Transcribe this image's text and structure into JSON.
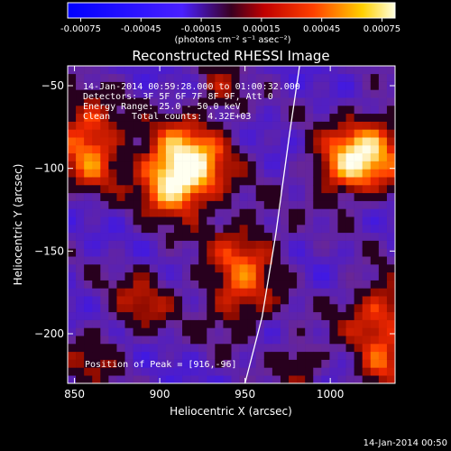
{
  "colorbar": {
    "ticks": [
      "-0.00075",
      "-0.00045",
      "-0.00015",
      "0.00015",
      "0.00045",
      "0.00075"
    ],
    "units": "(photons cm⁻² s⁻¹ asec⁻²)"
  },
  "title": "Reconstructed RHESSI Image",
  "annotations": {
    "time_range": "14-Jan-2014 00:59:28.000 to 01:00:32.000",
    "detectors": "Detectors: 3F 5F 6F 7F 8F 9F, Att 0",
    "energy": "Energy Range: 25.0 - 50.0 keV",
    "algorithm": "Clean",
    "counts": "Total counts: 4.32E+03",
    "peak": "Position of Peak = [916,-96]"
  },
  "footer_timestamp": "14-Jan-2014 00:50",
  "chart_data": {
    "type": "heatmap",
    "title": "Reconstructed RHESSI Image",
    "xlabel": "Heliocentric X (arcsec)",
    "ylabel": "Heliocentric Y (arcsec)",
    "xlim": [
      846,
      1038
    ],
    "ylim": [
      -230,
      -38
    ],
    "x_ticks": [
      850,
      900,
      950,
      1000
    ],
    "y_ticks": [
      -50,
      -100,
      -150,
      -200
    ],
    "colorbar_range": [
      -0.00075,
      0.00075
    ],
    "limb_curve": [
      [
        950,
        -230
      ],
      [
        960,
        -190
      ],
      [
        968,
        -140
      ],
      [
        976,
        -80
      ],
      [
        982,
        -38
      ]
    ],
    "blobs": [
      {
        "x": 916,
        "y": -96,
        "r": 18,
        "amp": 0.00075
      },
      {
        "x": 908,
        "y": -110,
        "r": 14,
        "amp": 0.0005
      },
      {
        "x": 858,
        "y": -76,
        "r": 14,
        "amp": 0.00055
      },
      {
        "x": 860,
        "y": -100,
        "r": 12,
        "amp": 0.0004
      },
      {
        "x": 950,
        "y": -152,
        "r": 16,
        "amp": 0.00045
      },
      {
        "x": 945,
        "y": -182,
        "r": 14,
        "amp": 0.0004
      },
      {
        "x": 1025,
        "y": -88,
        "r": 16,
        "amp": 0.0006
      },
      {
        "x": 1008,
        "y": -100,
        "r": 14,
        "amp": 0.0005
      },
      {
        "x": 1030,
        "y": -190,
        "r": 16,
        "amp": 0.00055
      },
      {
        "x": 1030,
        "y": -222,
        "r": 10,
        "amp": 0.0004
      },
      {
        "x": 890,
        "y": -180,
        "r": 14,
        "amp": 0.00035
      },
      {
        "x": 935,
        "y": -52,
        "r": 10,
        "amp": 0.0003
      },
      {
        "x": 982,
        "y": -218,
        "r": 10,
        "amp": 0.00035
      },
      {
        "x": 860,
        "y": -215,
        "r": 12,
        "amp": 0.0003
      }
    ]
  }
}
